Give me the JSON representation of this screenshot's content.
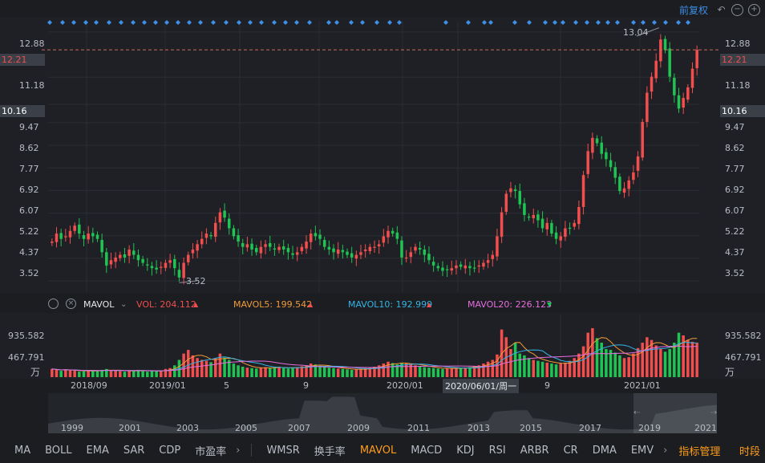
{
  "toolbar": {
    "mode": "前复权"
  },
  "price_axis": {
    "ticks": [
      "12.88",
      "11.18",
      "10.16",
      "9.47",
      "8.62",
      "7.77",
      "6.92",
      "6.07",
      "5.22",
      "4.37",
      "3.52"
    ],
    "current": "12.21",
    "crosshair": "10.16"
  },
  "annotations": {
    "high": "13.04",
    "low": "3.52"
  },
  "volume_axis": {
    "ticks": [
      "935.582",
      "467.791"
    ],
    "unit": "万"
  },
  "indicator": {
    "name": "MAVOL",
    "vol": "VOL: 204.112",
    "ma5": "MAVOL5: 199.542",
    "ma10": "MAVOL10: 192.999",
    "ma20": "MAVOL20: 226.123"
  },
  "x_axis": {
    "ticks": [
      "2018/09",
      "2019/01",
      "5",
      "9",
      "2020/01",
      "9",
      "2021/01"
    ],
    "cursor": "2020/06/01/周一"
  },
  "navigator": {
    "years": [
      "1999",
      "2001",
      "2003",
      "2005",
      "2007",
      "2009",
      "2011",
      "2013",
      "2015",
      "2017",
      "2019",
      "2021"
    ]
  },
  "bottom_tabs": {
    "tabs": [
      "MA",
      "BOLL",
      "EMA",
      "SAR",
      "CDP",
      "市盈率",
      "WMSR",
      "换手率",
      "MAVOL",
      "MACD",
      "KDJ",
      "RSI",
      "ARBR",
      "CR",
      "DMA",
      "EMV"
    ],
    "manage": "指标管理",
    "period": "时段"
  },
  "colors": {
    "up": "#f24e4e",
    "down": "#1fc453",
    "ma5": "#f29a38",
    "ma10": "#33b5e5",
    "ma20": "#e56ee0",
    "accent": "#3d8fe8"
  },
  "chart_data": {
    "type": "candlestick",
    "y_range": [
      3.1,
      13.3
    ],
    "closes": [
      5.0,
      5.3,
      5.1,
      5.2,
      5.4,
      5.6,
      5.3,
      5.1,
      5.3,
      5.2,
      5.1,
      4.6,
      4.1,
      4.3,
      4.4,
      4.5,
      4.4,
      4.7,
      4.5,
      4.3,
      4.2,
      4.1,
      4.0,
      3.95,
      4.05,
      4.2,
      4.3,
      4.0,
      3.65,
      4.2,
      4.5,
      4.7,
      4.9,
      5.1,
      5.3,
      5.2,
      5.7,
      6.1,
      5.9,
      5.5,
      5.2,
      5.0,
      4.8,
      4.9,
      4.7,
      4.6,
      4.8,
      4.9,
      4.8,
      4.7,
      4.8,
      4.7,
      4.6,
      4.5,
      4.6,
      4.8,
      5.0,
      5.3,
      5.2,
      5.1,
      4.8,
      4.7,
      4.6,
      4.7,
      4.6,
      4.5,
      4.4,
      4.5,
      4.6,
      4.7,
      4.8,
      4.8,
      4.9,
      5.2,
      5.4,
      5.3,
      5.1,
      4.4,
      4.4,
      4.6,
      4.8,
      4.7,
      4.5,
      4.3,
      4.1,
      4.0,
      3.9,
      3.95,
      4.0,
      4.1,
      4.05,
      4.1,
      4.0,
      4.0,
      4.1,
      4.2,
      4.3,
      4.5,
      5.2,
      6.1,
      6.8,
      7.0,
      6.9,
      6.4,
      6.0,
      5.9,
      6.0,
      5.8,
      5.5,
      5.7,
      5.3,
      5.1,
      5.2,
      5.5,
      5.5,
      5.7,
      6.3,
      7.5,
      8.4,
      8.9,
      8.7,
      8.3,
      8.1,
      7.8,
      7.4,
      6.9,
      7.0,
      7.3,
      7.6,
      8.2,
      9.5,
      10.6,
      11.2,
      11.8,
      12.6,
      12.2,
      11.2,
      10.5,
      10.0,
      10.4,
      10.8,
      11.5,
      12.21
    ],
    "volume_range": [
      0,
      1380
    ],
    "volumes": [
      180,
      160,
      140,
      170,
      150,
      140,
      120,
      130,
      150,
      140,
      130,
      160,
      180,
      150,
      140,
      130,
      120,
      140,
      150,
      160,
      130,
      120,
      140,
      130,
      150,
      180,
      200,
      260,
      380,
      520,
      600,
      480,
      420,
      380,
      360,
      330,
      420,
      520,
      430,
      380,
      300,
      260,
      230,
      210,
      200,
      190,
      210,
      220,
      200,
      210,
      230,
      200,
      190,
      210,
      220,
      240,
      260,
      300,
      280,
      250,
      230,
      210,
      200,
      190,
      180,
      170,
      160,
      170,
      180,
      200,
      210,
      230,
      260,
      300,
      340,
      310,
      280,
      320,
      300,
      280,
      260,
      240,
      220,
      210,
      200,
      190,
      180,
      190,
      200,
      210,
      200,
      210,
      220,
      240,
      260,
      300,
      340,
      380,
      500,
      1050,
      880,
      620,
      760,
      520,
      480,
      420,
      380,
      360,
      340,
      320,
      300,
      280,
      300,
      320,
      360,
      420,
      520,
      680,
      980,
      1080,
      860,
      760,
      620,
      600,
      540,
      480,
      420,
      440,
      520,
      640,
      760,
      880,
      820,
      700,
      620,
      560,
      620,
      760,
      980,
      920,
      820,
      780,
      760
    ]
  }
}
